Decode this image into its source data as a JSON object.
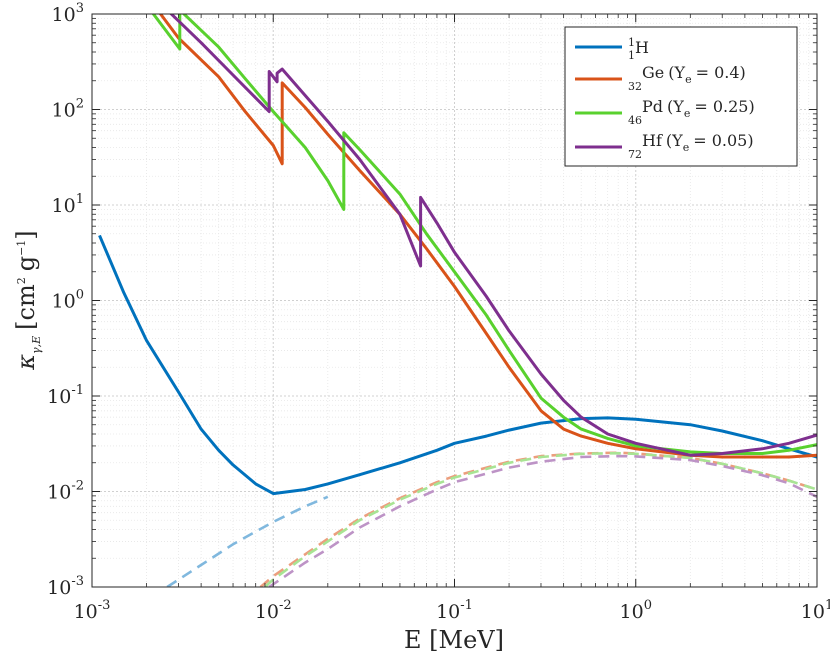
{
  "chart_data": {
    "type": "line",
    "xscale": "log",
    "yscale": "log",
    "xlim": [
      0.001,
      10
    ],
    "ylim": [
      0.001,
      1000
    ],
    "grid": true,
    "minor_grid": true,
    "legend_position": "top-right",
    "xlabel": "E [MeV]",
    "ylabel": {
      "kappa": "κ",
      "sub": "γ,E",
      "open": "[cm",
      "exp1": "2",
      "mid": "g",
      "exp2": "−1",
      "close": "]"
    },
    "x_ticks": [
      {
        "value": 0.001,
        "base": "10",
        "exp": "-3"
      },
      {
        "value": 0.01,
        "base": "10",
        "exp": "-2"
      },
      {
        "value": 0.1,
        "base": "10",
        "exp": "-1"
      },
      {
        "value": 1,
        "base": "10",
        "exp": "0"
      },
      {
        "value": 10,
        "base": "10",
        "exp": "1"
      }
    ],
    "y_ticks": [
      {
        "value": 0.001,
        "base": "10",
        "exp": "-3"
      },
      {
        "value": 0.01,
        "base": "10",
        "exp": "-2"
      },
      {
        "value": 0.1,
        "base": "10",
        "exp": "-1"
      },
      {
        "value": 1,
        "base": "10",
        "exp": "0"
      },
      {
        "value": 10,
        "base": "10",
        "exp": "1"
      },
      {
        "value": 100,
        "base": "10",
        "exp": "2"
      },
      {
        "value": 1000,
        "base": "10",
        "exp": "3"
      }
    ],
    "series": [
      {
        "name": "1_1H",
        "legend": {
          "pre": "",
          "sup": "1",
          "sub": "1",
          "main": "H",
          "ye_open": "",
          "ye_sub": "",
          "ye_close": ""
        },
        "color": "#0072BD",
        "style": "solid",
        "points": [
          [
            0.0011,
            4.8
          ],
          [
            0.0015,
            1.2
          ],
          [
            0.002,
            0.38
          ],
          [
            0.003,
            0.11
          ],
          [
            0.004,
            0.045
          ],
          [
            0.005,
            0.027
          ],
          [
            0.006,
            0.019
          ],
          [
            0.008,
            0.012
          ],
          [
            0.01,
            0.0095
          ],
          [
            0.015,
            0.0105
          ],
          [
            0.02,
            0.012
          ],
          [
            0.03,
            0.015
          ],
          [
            0.05,
            0.02
          ],
          [
            0.08,
            0.027
          ],
          [
            0.1,
            0.032
          ],
          [
            0.15,
            0.038
          ],
          [
            0.2,
            0.044
          ],
          [
            0.3,
            0.052
          ],
          [
            0.5,
            0.058
          ],
          [
            0.7,
            0.059
          ],
          [
            1,
            0.057
          ],
          [
            2,
            0.05
          ],
          [
            3,
            0.043
          ],
          [
            5,
            0.034
          ],
          [
            7,
            0.028
          ],
          [
            10,
            0.023
          ]
        ]
      },
      {
        "name": "1_1H_dashed",
        "legend": null,
        "color": "#80B8DE",
        "style": "dashed",
        "points": [
          [
            0.0026,
            0.001
          ],
          [
            0.004,
            0.0017
          ],
          [
            0.006,
            0.0028
          ],
          [
            0.008,
            0.0038
          ],
          [
            0.01,
            0.0048
          ],
          [
            0.015,
            0.007
          ],
          [
            0.02,
            0.0088
          ]
        ]
      },
      {
        "name": "32Ge",
        "legend": {
          "pre": "",
          "sup": "",
          "sub": "32",
          "main": "Ge",
          "ye_open": "(Y",
          "ye_sub": "e",
          "ye_close": "= 0.4)"
        },
        "color": "#D95319",
        "style": "solid",
        "points": [
          [
            0.0023,
            1100
          ],
          [
            0.003,
            560
          ],
          [
            0.005,
            220
          ],
          [
            0.007,
            95
          ],
          [
            0.01,
            42
          ],
          [
            0.0112,
            27
          ],
          [
            0.0112,
            190
          ],
          [
            0.015,
            105
          ],
          [
            0.02,
            55
          ],
          [
            0.03,
            23
          ],
          [
            0.05,
            8
          ],
          [
            0.07,
            3.5
          ],
          [
            0.1,
            1.4
          ],
          [
            0.15,
            0.45
          ],
          [
            0.2,
            0.2
          ],
          [
            0.3,
            0.07
          ],
          [
            0.4,
            0.045
          ],
          [
            0.5,
            0.038
          ],
          [
            0.7,
            0.032
          ],
          [
            1,
            0.028
          ],
          [
            2,
            0.024
          ],
          [
            3,
            0.023
          ],
          [
            5,
            0.023
          ],
          [
            7,
            0.023
          ],
          [
            10,
            0.024
          ]
        ]
      },
      {
        "name": "32Ge_dashed",
        "legend": null,
        "color": "#EC9E7D",
        "style": "dashed",
        "points": [
          [
            0.0085,
            0.001
          ],
          [
            0.01,
            0.0013
          ],
          [
            0.015,
            0.0022
          ],
          [
            0.02,
            0.0032
          ],
          [
            0.03,
            0.0052
          ],
          [
            0.05,
            0.0085
          ],
          [
            0.08,
            0.0125
          ],
          [
            0.1,
            0.0145
          ],
          [
            0.2,
            0.0205
          ],
          [
            0.3,
            0.0235
          ],
          [
            0.5,
            0.025
          ],
          [
            0.8,
            0.0255
          ],
          [
            1,
            0.025
          ],
          [
            2,
            0.0225
          ],
          [
            3,
            0.0195
          ],
          [
            5,
            0.0155
          ],
          [
            7,
            0.013
          ],
          [
            10,
            0.0105
          ]
        ]
      },
      {
        "name": "46Pd",
        "legend": {
          "pre": "",
          "sup": "",
          "sub": "46",
          "main": "Pd",
          "ye_open": "(Y",
          "ye_sub": "e",
          "ye_close": "= 0.25)"
        },
        "color": "#59D12E",
        "style": "solid",
        "points": [
          [
            0.0021,
            1100
          ],
          [
            0.00305,
            430
          ],
          [
            0.00305,
            1100
          ],
          [
            0.005,
            450
          ],
          [
            0.007,
            210
          ],
          [
            0.01,
            95
          ],
          [
            0.015,
            40
          ],
          [
            0.02,
            18
          ],
          [
            0.0245,
            9
          ],
          [
            0.0245,
            57
          ],
          [
            0.03,
            38
          ],
          [
            0.05,
            13
          ],
          [
            0.07,
            5
          ],
          [
            0.1,
            2
          ],
          [
            0.15,
            0.7
          ],
          [
            0.2,
            0.3
          ],
          [
            0.3,
            0.095
          ],
          [
            0.4,
            0.06
          ],
          [
            0.5,
            0.045
          ],
          [
            0.7,
            0.036
          ],
          [
            1,
            0.03
          ],
          [
            2,
            0.026
          ],
          [
            3,
            0.025
          ],
          [
            5,
            0.025
          ],
          [
            7,
            0.027
          ],
          [
            10,
            0.031
          ]
        ]
      },
      {
        "name": "46Pd_dashed",
        "legend": null,
        "color": "#A8E494",
        "style": "dashed",
        "points": [
          [
            0.009,
            0.001
          ],
          [
            0.01,
            0.0012
          ],
          [
            0.015,
            0.0021
          ],
          [
            0.02,
            0.003
          ],
          [
            0.03,
            0.005
          ],
          [
            0.05,
            0.0082
          ],
          [
            0.08,
            0.012
          ],
          [
            0.1,
            0.014
          ],
          [
            0.2,
            0.02
          ],
          [
            0.3,
            0.023
          ],
          [
            0.5,
            0.0248
          ],
          [
            0.8,
            0.0252
          ],
          [
            1,
            0.0248
          ],
          [
            2,
            0.0225
          ],
          [
            3,
            0.0195
          ],
          [
            5,
            0.0155
          ],
          [
            7,
            0.013
          ],
          [
            10,
            0.0105
          ]
        ]
      },
      {
        "name": "72Hf",
        "legend": {
          "pre": "",
          "sup": "",
          "sub": "72",
          "main": "Hf",
          "ye_open": "(Y",
          "ye_sub": "e",
          "ye_close": "= 0.05)"
        },
        "color": "#7E2F8E",
        "style": "solid",
        "points": [
          [
            0.0026,
            1100
          ],
          [
            0.004,
            500
          ],
          [
            0.006,
            230
          ],
          [
            0.0095,
            95
          ],
          [
            0.0095,
            250
          ],
          [
            0.0105,
            195
          ],
          [
            0.0105,
            240
          ],
          [
            0.0112,
            265
          ],
          [
            0.015,
            140
          ],
          [
            0.02,
            75
          ],
          [
            0.03,
            30
          ],
          [
            0.05,
            8
          ],
          [
            0.065,
            2.3
          ],
          [
            0.065,
            12
          ],
          [
            0.08,
            6.5
          ],
          [
            0.1,
            3.2
          ],
          [
            0.15,
            1.1
          ],
          [
            0.2,
            0.48
          ],
          [
            0.3,
            0.17
          ],
          [
            0.4,
            0.09
          ],
          [
            0.5,
            0.06
          ],
          [
            0.7,
            0.04
          ],
          [
            1,
            0.032
          ],
          [
            2,
            0.024
          ],
          [
            3,
            0.025
          ],
          [
            5,
            0.028
          ],
          [
            7,
            0.032
          ],
          [
            10,
            0.039
          ]
        ]
      },
      {
        "name": "72Hf_dashed",
        "legend": null,
        "color": "#BD93C6",
        "style": "dashed",
        "points": [
          [
            0.0095,
            0.001
          ],
          [
            0.015,
            0.0018
          ],
          [
            0.02,
            0.0025
          ],
          [
            0.03,
            0.0042
          ],
          [
            0.05,
            0.007
          ],
          [
            0.08,
            0.0105
          ],
          [
            0.1,
            0.0125
          ],
          [
            0.2,
            0.0178
          ],
          [
            0.3,
            0.0205
          ],
          [
            0.5,
            0.023
          ],
          [
            0.8,
            0.0235
          ],
          [
            1,
            0.0233
          ],
          [
            2,
            0.0213
          ],
          [
            3,
            0.0185
          ],
          [
            5,
            0.0148
          ],
          [
            7,
            0.0122
          ],
          [
            10,
            0.0088
          ]
        ]
      }
    ]
  }
}
